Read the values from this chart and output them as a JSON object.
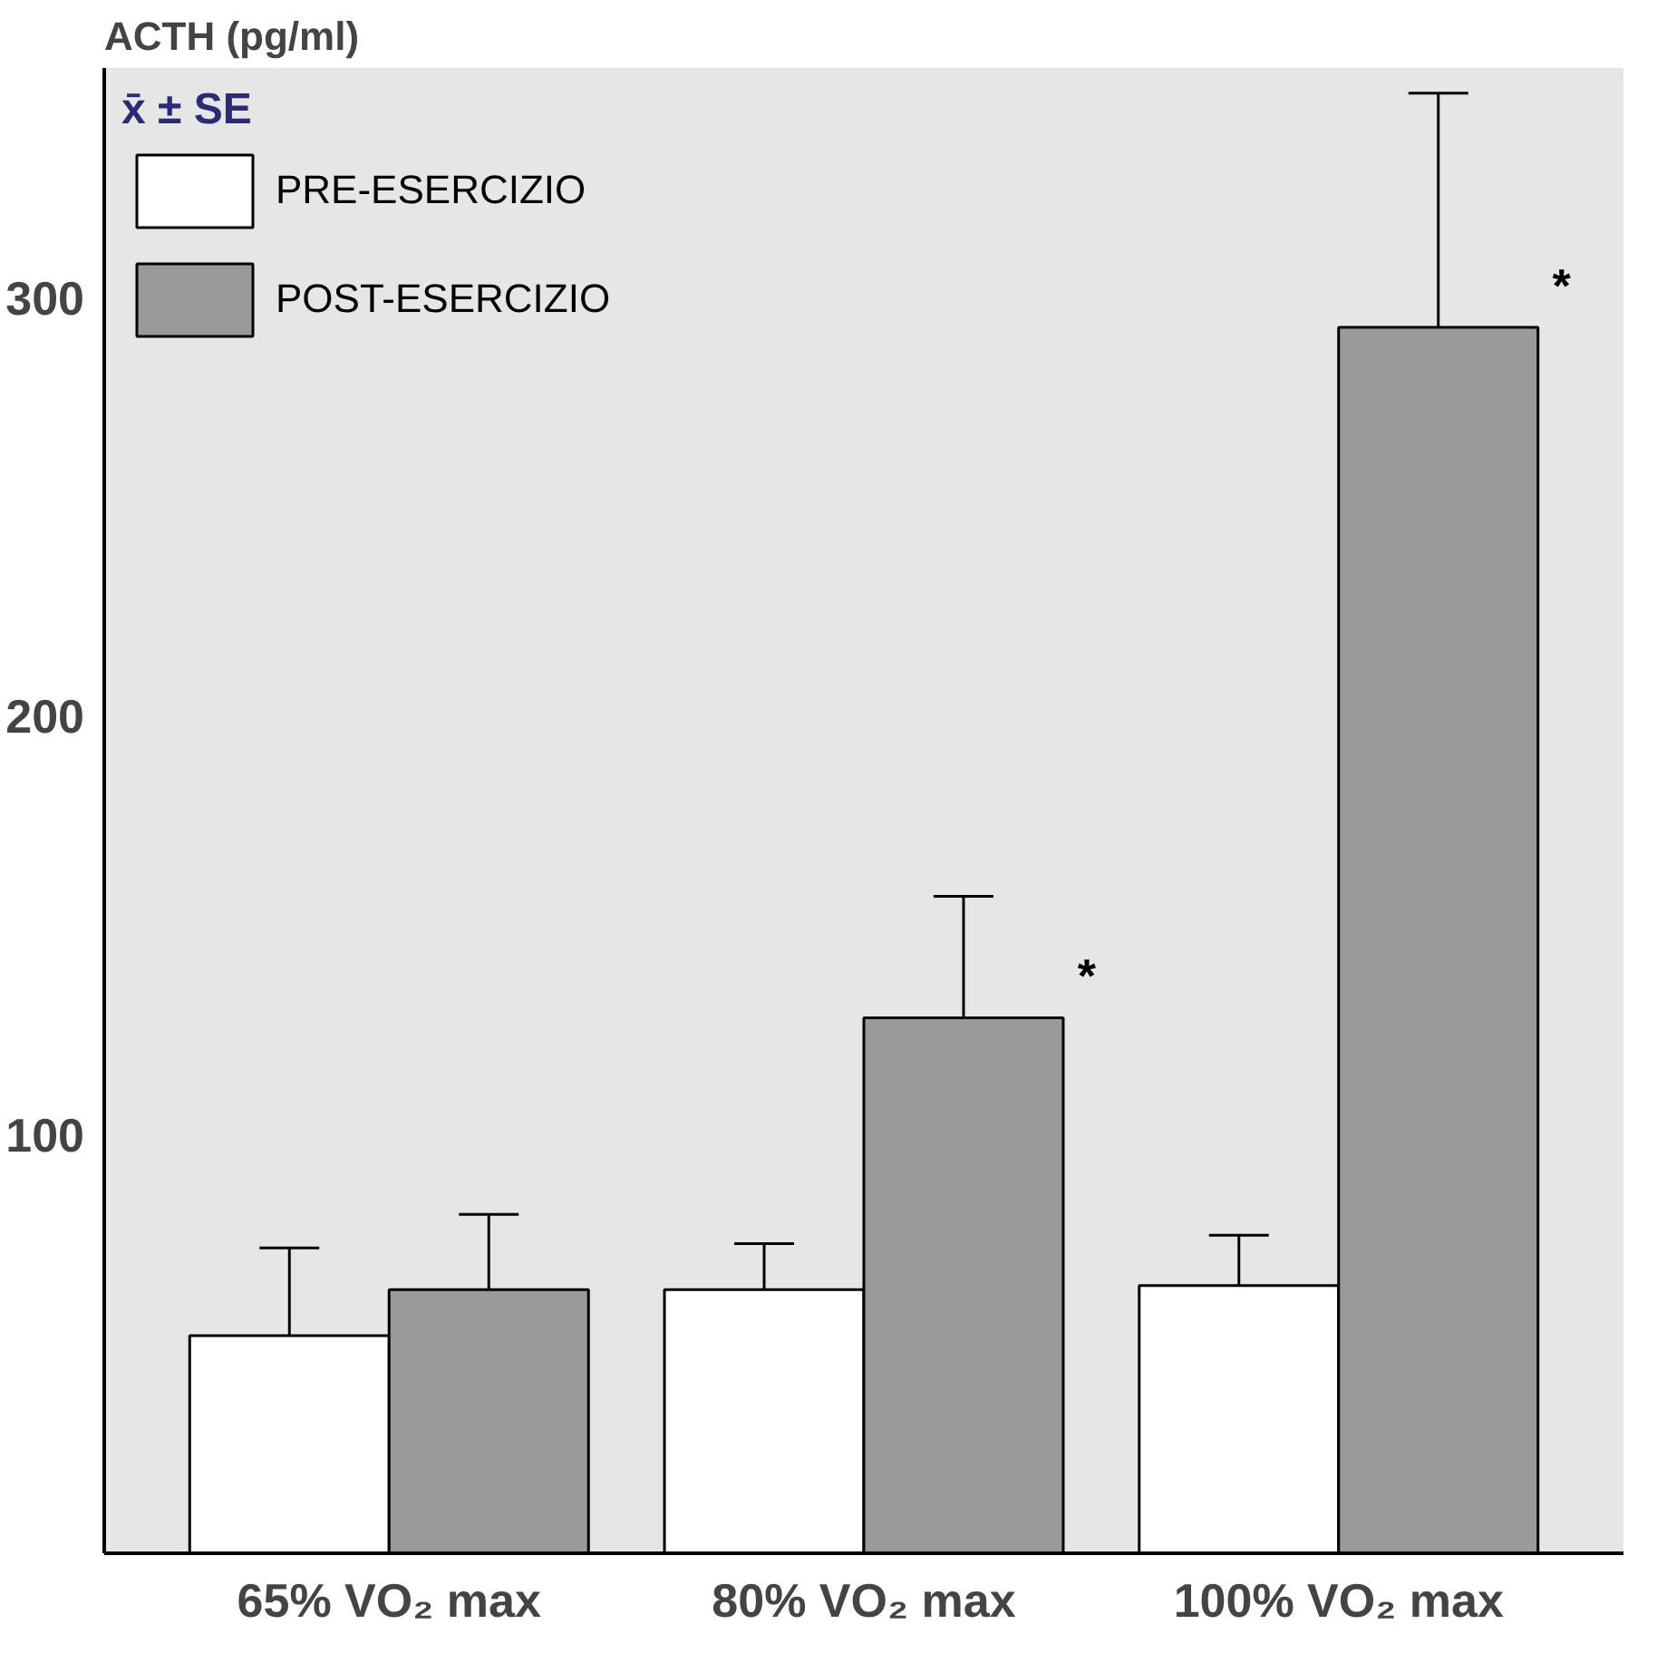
{
  "chart_data": {
    "type": "bar",
    "ylabel": "ACTH (pg/ml)",
    "legend_title": "x̄ ± SE",
    "categories": [
      "65% VO₂ max",
      "80% VO₂ max",
      "100% VO₂ max"
    ],
    "series": [
      {
        "name": "PRE-ESERCIZIO",
        "color": "#ffffff",
        "values": [
          52,
          63,
          64
        ],
        "errors": [
          [
            52,
            73
          ],
          [
            63,
            74
          ],
          [
            64,
            76
          ]
        ]
      },
      {
        "name": "POST-ESERCIZIO",
        "color": "#9a9a9a",
        "values": [
          63,
          128,
          293
        ],
        "errors": [
          [
            63,
            81
          ],
          [
            128,
            157
          ],
          [
            293,
            349
          ]
        ]
      }
    ],
    "annotations": [
      "*",
      "*"
    ],
    "ylim": [
      0,
      355
    ],
    "yticks": [
      100,
      200,
      300
    ],
    "legend": "top left"
  }
}
